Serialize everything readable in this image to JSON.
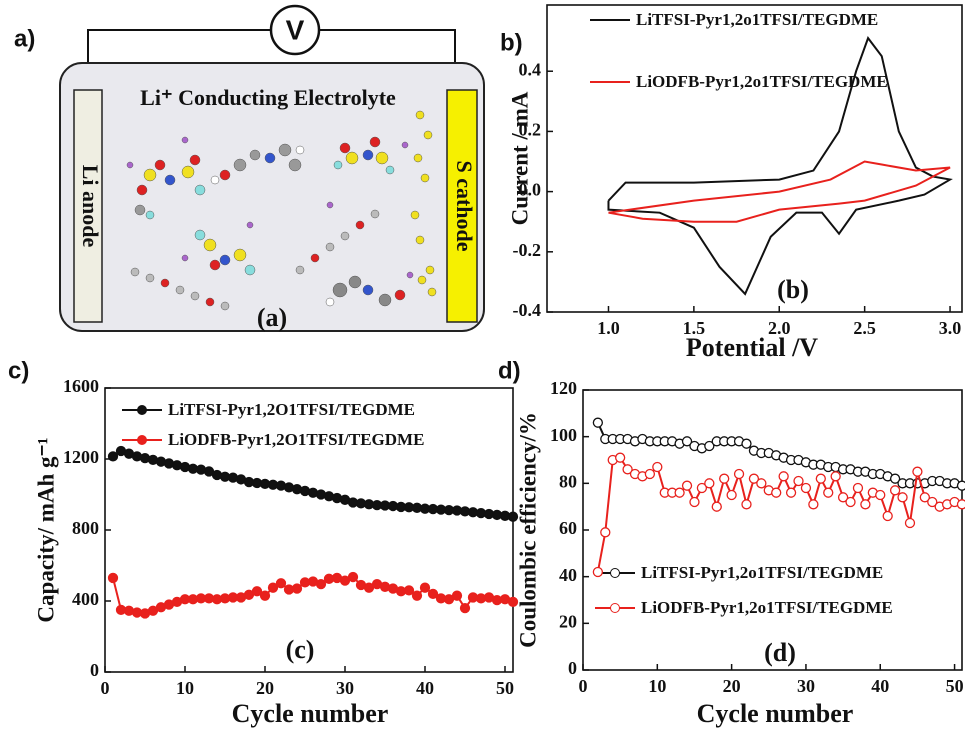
{
  "diagram": {
    "panel_label": "a)",
    "voltmeter": "V",
    "electrolyte": "Li⁺ Conducting Electrolyte",
    "anode": "Li anode",
    "cathode": "S cathode",
    "tag": "(a)"
  },
  "chart_data": [
    {
      "type": "line",
      "panel_label": "b)",
      "tag": "(b)",
      "xlabel": "Potential /V",
      "ylabel": "Current / mA",
      "xlim": [
        0.64,
        3.07
      ],
      "ylim": [
        -0.4,
        0.62
      ],
      "xticks": [
        {
          "value": 1.0,
          "label": "1.0"
        },
        1.5,
        {
          "value": 2.0,
          "label": "2.0"
        },
        2.5,
        {
          "value": 3.0,
          "label": "3.0"
        }
      ],
      "yticks": [
        -0.4,
        -0.2,
        {
          "value": 0.0,
          "label": "0.0"
        },
        0.2,
        0.4
      ],
      "legend": "upper left",
      "series": [
        {
          "name": "LiTFSI-Pyr1,2o1TFSI/TEGDME",
          "color": "#111111",
          "x": [
            1.0,
            1.1,
            1.5,
            2.0,
            2.2,
            2.35,
            2.45,
            2.52,
            2.6,
            2.7,
            2.8,
            2.9,
            3.0,
            2.85,
            2.7,
            2.45,
            2.35,
            2.25,
            2.1,
            1.95,
            1.8,
            1.65,
            1.5,
            1.3,
            1.0,
            1.0
          ],
          "values": [
            -0.03,
            0.03,
            0.03,
            0.04,
            0.07,
            0.2,
            0.4,
            0.51,
            0.45,
            0.2,
            0.08,
            0.05,
            0.04,
            -0.01,
            -0.03,
            -0.06,
            -0.14,
            -0.07,
            -0.07,
            -0.15,
            -0.34,
            -0.25,
            -0.12,
            -0.07,
            -0.06,
            -0.03
          ]
        },
        {
          "name": "LiODFB-Pyr1,2o1TFSI/TEGDME",
          "color": "#e8211d",
          "x": [
            1.0,
            1.5,
            2.0,
            2.3,
            2.5,
            2.6,
            2.8,
            3.0,
            2.8,
            2.5,
            2.35,
            2.0,
            1.75,
            1.5,
            1.2,
            1.0
          ],
          "values": [
            -0.07,
            -0.03,
            0.0,
            0.04,
            0.1,
            0.09,
            0.07,
            0.08,
            0.02,
            -0.03,
            -0.04,
            -0.06,
            -0.1,
            -0.1,
            -0.09,
            -0.07
          ]
        }
      ]
    },
    {
      "type": "line",
      "panel_label": "c)",
      "tag": "(c)",
      "xlabel": "Cycle number",
      "ylabel": "Capacity/ mAh g⁻¹",
      "xlim": [
        0,
        51
      ],
      "ylim": [
        0,
        1600
      ],
      "xticks": [
        0,
        10,
        20,
        30,
        40,
        50
      ],
      "yticks": [
        0,
        400,
        800,
        1200,
        1600
      ],
      "legend": "upper left",
      "markers": "filled",
      "x": [
        1,
        2,
        3,
        4,
        5,
        6,
        7,
        8,
        9,
        10,
        11,
        12,
        13,
        14,
        15,
        16,
        17,
        18,
        19,
        20,
        21,
        22,
        23,
        24,
        25,
        26,
        27,
        28,
        29,
        30,
        31,
        32,
        33,
        34,
        35,
        36,
        37,
        38,
        39,
        40,
        41,
        42,
        43,
        44,
        45,
        46,
        47,
        48,
        49,
        50,
        51
      ],
      "series": [
        {
          "name": "LiTFSI-Pyr1,2O1TFSI/TEGDME",
          "color": "#111111",
          "values": [
            1215,
            1245,
            1230,
            1215,
            1205,
            1195,
            1185,
            1175,
            1165,
            1155,
            1145,
            1140,
            1130,
            1110,
            1100,
            1095,
            1085,
            1070,
            1065,
            1060,
            1055,
            1050,
            1040,
            1030,
            1020,
            1010,
            1000,
            990,
            980,
            970,
            955,
            950,
            945,
            940,
            938,
            935,
            930,
            928,
            925,
            920,
            918,
            915,
            912,
            910,
            905,
            900,
            895,
            890,
            885,
            880,
            875
          ]
        },
        {
          "name": "LiODFB-Pyr1,2O1TFSI/TEGDME",
          "color": "#e8211d",
          "values": [
            530,
            350,
            345,
            335,
            330,
            345,
            365,
            380,
            395,
            410,
            410,
            415,
            415,
            410,
            415,
            420,
            420,
            435,
            455,
            430,
            475,
            500,
            465,
            470,
            505,
            510,
            495,
            525,
            530,
            515,
            535,
            490,
            475,
            495,
            480,
            470,
            455,
            460,
            430,
            475,
            440,
            415,
            410,
            430,
            360,
            420,
            415,
            420,
            405,
            410,
            395
          ]
        }
      ]
    },
    {
      "type": "line",
      "panel_label": "d)",
      "tag": "(d)",
      "xlabel": "Cycle number",
      "ylabel": "Coulombic efficiency/%",
      "xlim": [
        0,
        51
      ],
      "ylim": [
        0,
        120
      ],
      "xticks": [
        0,
        10,
        20,
        30,
        40,
        50
      ],
      "yticks": [
        0,
        20,
        40,
        60,
        80,
        100,
        120
      ],
      "legend": "lower left",
      "markers": "open",
      "x": [
        2,
        3,
        4,
        5,
        6,
        7,
        8,
        9,
        10,
        11,
        12,
        13,
        14,
        15,
        16,
        17,
        18,
        19,
        20,
        21,
        22,
        23,
        24,
        25,
        26,
        27,
        28,
        29,
        30,
        31,
        32,
        33,
        34,
        35,
        36,
        37,
        38,
        39,
        40,
        41,
        42,
        43,
        44,
        45,
        46,
        47,
        48,
        49,
        50,
        51
      ],
      "series": [
        {
          "name": "LiTFSI-Pyr1,2o1TFSI/TEGDME",
          "color": "#111111",
          "values": [
            106,
            99,
            99,
            99,
            99,
            98,
            99,
            98,
            98,
            98,
            98,
            97,
            98,
            96,
            95,
            96,
            98,
            98,
            98,
            98,
            97,
            94,
            93,
            93,
            92,
            91,
            90,
            90,
            89,
            88,
            88,
            87,
            87,
            86,
            86,
            85,
            85,
            84,
            84,
            83,
            82,
            80,
            80,
            80,
            80,
            81,
            81,
            80,
            80,
            79
          ]
        },
        {
          "name": "LiODFB-Pyr1,2o1TFSI/TEGDME",
          "color": "#e8211d",
          "values": [
            42,
            59,
            90,
            91,
            86,
            84,
            83,
            84,
            87,
            76,
            76,
            76,
            79,
            72,
            78,
            80,
            70,
            82,
            75,
            84,
            71,
            82,
            80,
            77,
            76,
            83,
            76,
            81,
            78,
            71,
            82,
            76,
            83,
            74,
            72,
            78,
            71,
            76,
            75,
            66,
            77,
            74,
            63,
            85,
            74,
            72,
            70,
            71,
            72,
            71
          ]
        }
      ]
    }
  ]
}
